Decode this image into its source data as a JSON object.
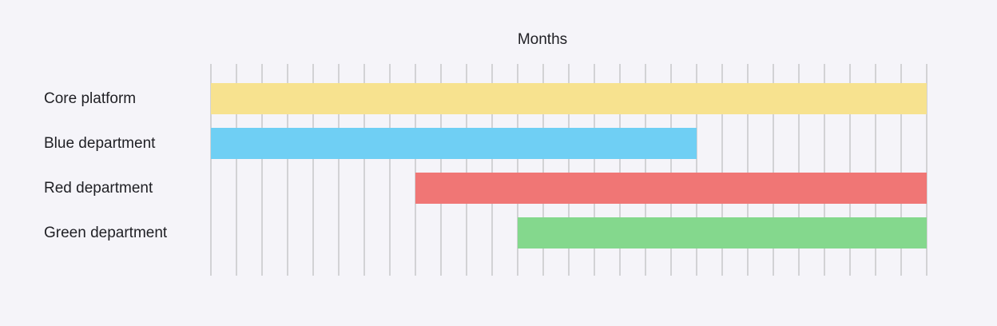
{
  "chart_data": {
    "type": "bar",
    "orientation": "horizontal-gantt",
    "title": "",
    "xlabel": "Months",
    "ylabel": "",
    "xlim": [
      0,
      28
    ],
    "grid": true,
    "rows": [
      {
        "label": "Core platform",
        "start": 0,
        "end": 28,
        "color": "#f7e28f"
      },
      {
        "label": "Blue department",
        "start": 0,
        "end": 19,
        "color": "#6fcff4"
      },
      {
        "label": "Red department",
        "start": 8,
        "end": 28,
        "color": "#f07675"
      },
      {
        "label": "Green department",
        "start": 12,
        "end": 28,
        "color": "#84d88d"
      }
    ]
  },
  "colors": {
    "background": "#f5f4f9",
    "grid": "#c6c6c9",
    "text": "#1f1f24"
  }
}
